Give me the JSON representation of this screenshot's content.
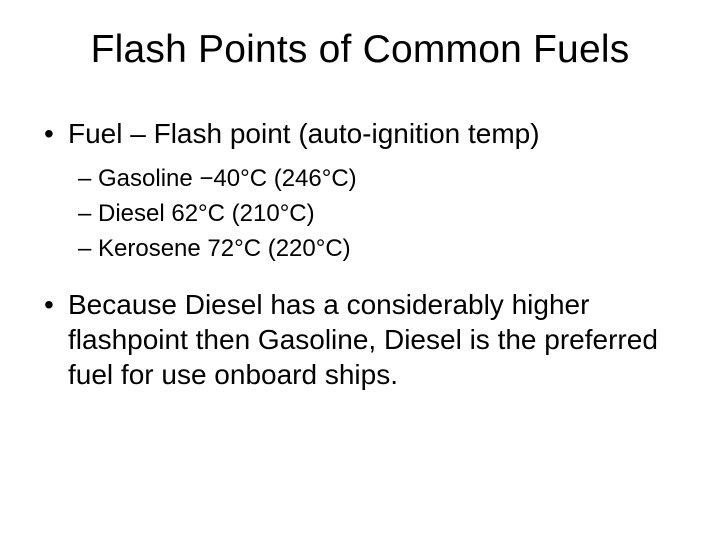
{
  "background_color": "#ffffff",
  "text_color": "#000000",
  "font_family": "Arial",
  "title": {
    "text": "Flash Points of Common Fuels",
    "fontsize": 39,
    "align": "center"
  },
  "bullets": {
    "heading": {
      "text": "Fuel – Flash point (auto-ignition temp)",
      "fontsize": 28
    },
    "items": [
      {
        "text": "Gasoline −40°C (246°C)",
        "fontsize": 24
      },
      {
        "text": "Diesel 62°C (210°C)",
        "fontsize": 24
      },
      {
        "text": "Kerosene 72°C (220°C)",
        "fontsize": 24
      }
    ],
    "paragraph": {
      "text": "Because Diesel has a considerably higher flashpoint then Gasoline, Diesel is the preferred fuel for use onboard ships.",
      "fontsize": 28
    }
  }
}
